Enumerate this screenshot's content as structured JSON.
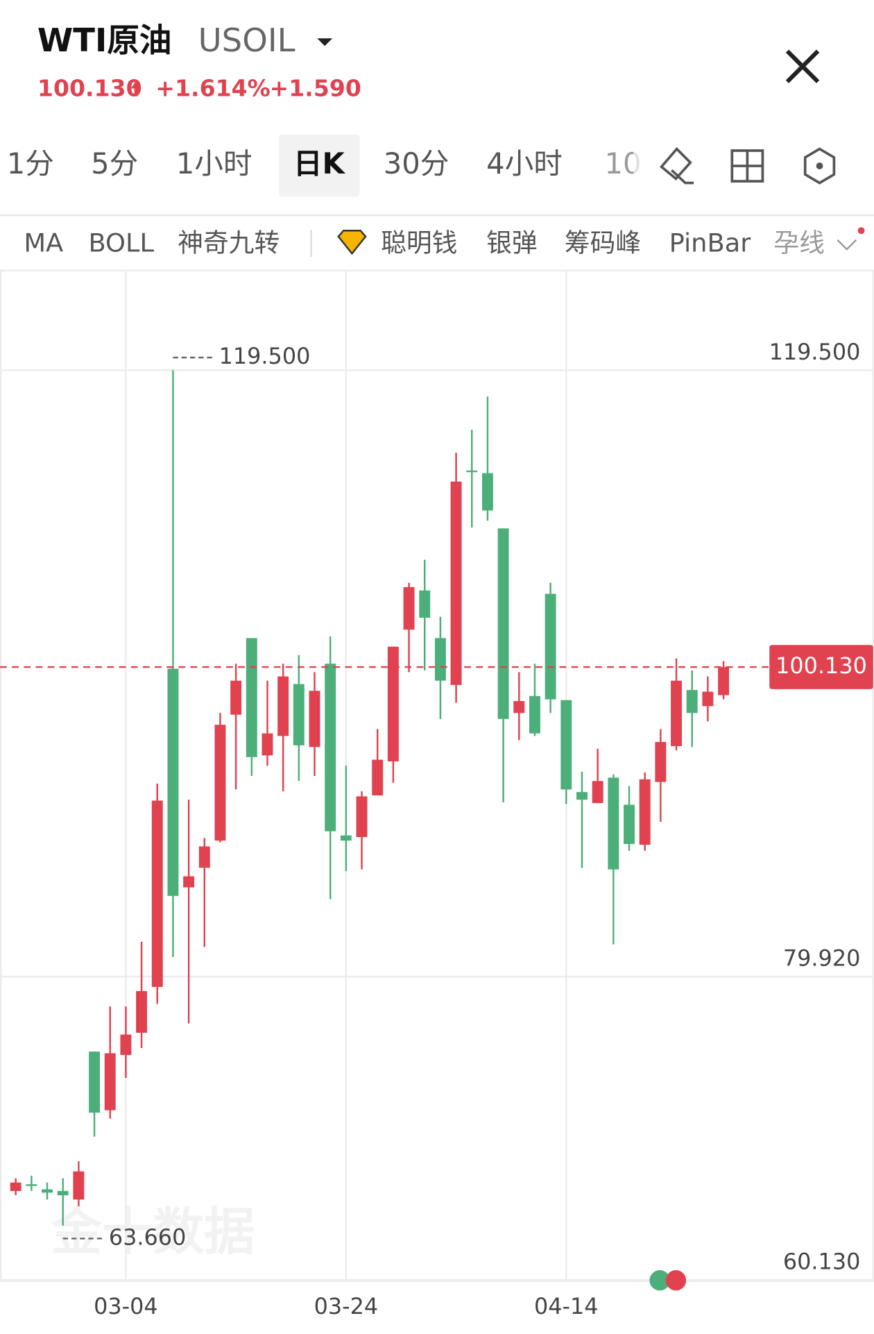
{
  "header": {
    "title": "WTI原油",
    "symbol": "USOIL",
    "price": "100.130",
    "change_percent": "+1.614%",
    "change": "+1.590"
  },
  "tabs": [
    "1分",
    "5分",
    "1小时",
    "日K",
    "30分",
    "4小时",
    "10"
  ],
  "indicators": [
    "MA",
    "BOLL",
    "神奇九转",
    "聪明钱",
    "银弹",
    "筹码峰",
    "PinBar",
    "孕线"
  ],
  "watermark": "金十数据",
  "chart_data": {
    "type": "candlestick",
    "x": [
      null,
      null,
      null,
      null,
      null,
      null,
      null,
      "03-04",
      null,
      null,
      null,
      null,
      null,
      null,
      null,
      null,
      null,
      null,
      null,
      null,
      null,
      "03-24",
      null,
      null,
      null,
      null,
      null,
      null,
      null,
      null,
      null,
      null,
      null,
      null,
      null,
      "04-14",
      null,
      null,
      null,
      null,
      null,
      null,
      null,
      null,
      null,
      null
    ],
    "open": [
      65.93,
      66.37,
      66.04,
      65.93,
      65.37,
      75.03,
      71.2,
      74.81,
      76.26,
      79.25,
      100.02,
      85.75,
      87.03,
      88.8,
      97.02,
      102.02,
      94.36,
      95.63,
      99.02,
      94.91,
      100.35,
      89.14,
      89.03,
      91.75,
      93.97,
      102.57,
      105.13,
      102.02,
      98.96,
      112.96,
      112.79,
      109.18,
      97.13,
      98.24,
      104.91,
      97.97,
      91.97,
      91.25,
      92.91,
      91.14,
      88.53,
      92.63,
      94.97,
      98.63,
      97.58,
      98.3
    ],
    "high": [
      66.76,
      66.93,
      66.48,
      66.76,
      67.87,
      75.03,
      77.98,
      77.98,
      82.2,
      92.52,
      119.5,
      91.47,
      88.97,
      97.13,
      100.35,
      102.02,
      99.24,
      100.35,
      100.91,
      99.8,
      102.13,
      93.69,
      92.02,
      96.08,
      101.46,
      105.63,
      107.13,
      103.41,
      114.12,
      115.62,
      117.79,
      109.18,
      99.8,
      100.35,
      105.63,
      97.97,
      93.3,
      94.8,
      93.13,
      92.36,
      93.25,
      96.08,
      100.69,
      99.91,
      99.52,
      100.52
    ],
    "low": [
      65.65,
      65.93,
      65.37,
      63.66,
      64.93,
      69.48,
      70.65,
      73.31,
      75.26,
      78.14,
      81.2,
      76.87,
      81.86,
      88.69,
      92.14,
      93.02,
      93.69,
      92.02,
      92.69,
      93.02,
      84.97,
      86.81,
      86.92,
      91.75,
      92.58,
      99.8,
      99.91,
      96.74,
      97.8,
      109.24,
      109.68,
      91.3,
      95.36,
      95.63,
      97.13,
      91.19,
      87.03,
      91.25,
      82.03,
      88.14,
      88.14,
      90.03,
      94.69,
      94.91,
      96.58,
      98.02
    ],
    "close": [
      66.48,
      66.32,
      65.82,
      65.65,
      67.21,
      71.04,
      74.92,
      76.14,
      78.98,
      91.41,
      85.19,
      86.47,
      88.42,
      96.36,
      99.24,
      94.25,
      95.8,
      99.52,
      95.02,
      98.58,
      89.41,
      88.8,
      91.69,
      94.08,
      101.46,
      105.35,
      103.35,
      99.24,
      112.24,
      112.9,
      110.35,
      96.74,
      97.91,
      95.8,
      98.02,
      92.14,
      91.47,
      92.69,
      86.92,
      88.58,
      92.8,
      95.24,
      99.24,
      97.13,
      98.52,
      100.13
    ],
    "up_color": "#e0424f",
    "down_color": "#4caf7a",
    "ylim": [
      60.04,
      126.01
    ],
    "yticks": [
      {
        "value": 119.5,
        "label": "119.500"
      },
      {
        "value": 79.92,
        "label": "79.920"
      },
      {
        "value": 60.13,
        "label": "60.130"
      }
    ],
    "grid": true,
    "price_line": {
      "value": 100.13,
      "label": "100.130"
    },
    "high_label": {
      "value": 119.5,
      "label": "119.500"
    },
    "low_label": {
      "value": 63.66,
      "label": "63.660"
    }
  }
}
